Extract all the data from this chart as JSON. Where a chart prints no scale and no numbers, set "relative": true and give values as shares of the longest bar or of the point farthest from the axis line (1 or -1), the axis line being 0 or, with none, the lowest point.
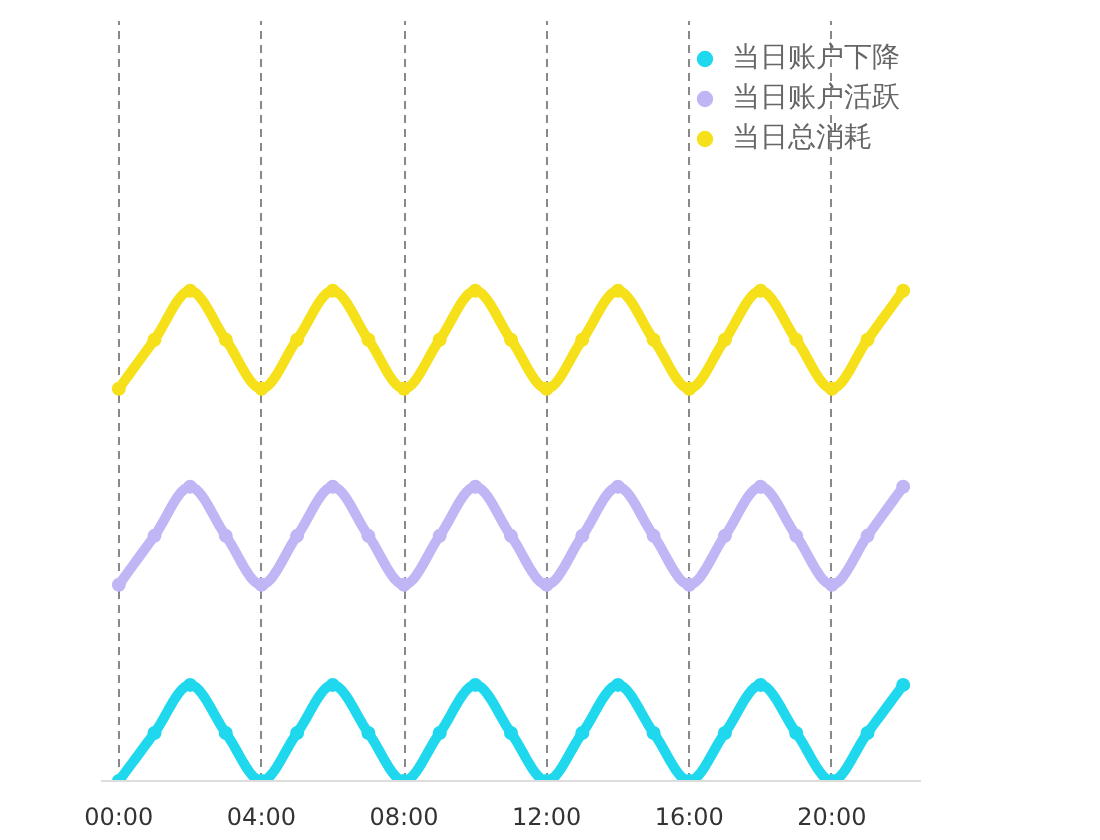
{
  "chart_data": {
    "type": "line",
    "relative": true,
    "x": [
      0,
      1,
      2,
      3,
      4,
      5,
      6,
      7,
      8,
      9,
      10,
      11,
      12,
      13,
      14,
      15,
      16,
      17,
      18,
      19,
      20,
      21,
      22
    ],
    "xlim": [
      -0.5,
      22.5
    ],
    "xticks": [
      {
        "value": 0,
        "label": "00:00"
      },
      {
        "value": 4,
        "label": "04:00"
      },
      {
        "value": 8,
        "label": "08:00"
      },
      {
        "value": 12,
        "label": "12:00"
      },
      {
        "value": 16,
        "label": "16:00"
      },
      {
        "value": 20,
        "label": "20:00"
      }
    ],
    "series": [
      {
        "name": "当日账户下降",
        "color": "#1fd8ee",
        "values": [
          0,
          0.098,
          0.196,
          0.098,
          0,
          0.098,
          0.196,
          0.098,
          0,
          0.098,
          0.196,
          0.098,
          0,
          0.098,
          0.196,
          0.098,
          0,
          0.098,
          0.196,
          0.098,
          0,
          0.098,
          0.196
        ]
      },
      {
        "name": "当日账户活跃",
        "color": "#c0b6f5",
        "values": [
          0.4,
          0.5,
          0.6,
          0.5,
          0.4,
          0.5,
          0.6,
          0.5,
          0.4,
          0.5,
          0.6,
          0.5,
          0.4,
          0.5,
          0.6,
          0.5,
          0.4,
          0.5,
          0.6,
          0.5,
          0.4,
          0.5,
          0.6
        ]
      },
      {
        "name": "当日总消耗",
        "color": "#f5e01a",
        "values": [
          0.8,
          0.9,
          1.0,
          0.9,
          0.8,
          0.9,
          1.0,
          0.9,
          0.8,
          0.9,
          1.0,
          0.9,
          0.8,
          0.9,
          1.0,
          0.9,
          0.8,
          0.9,
          1.0,
          0.9,
          0.8,
          0.9,
          1.0
        ]
      }
    ],
    "grid": "x",
    "line_style": "solid",
    "marker": "circle",
    "legend": "top right"
  }
}
